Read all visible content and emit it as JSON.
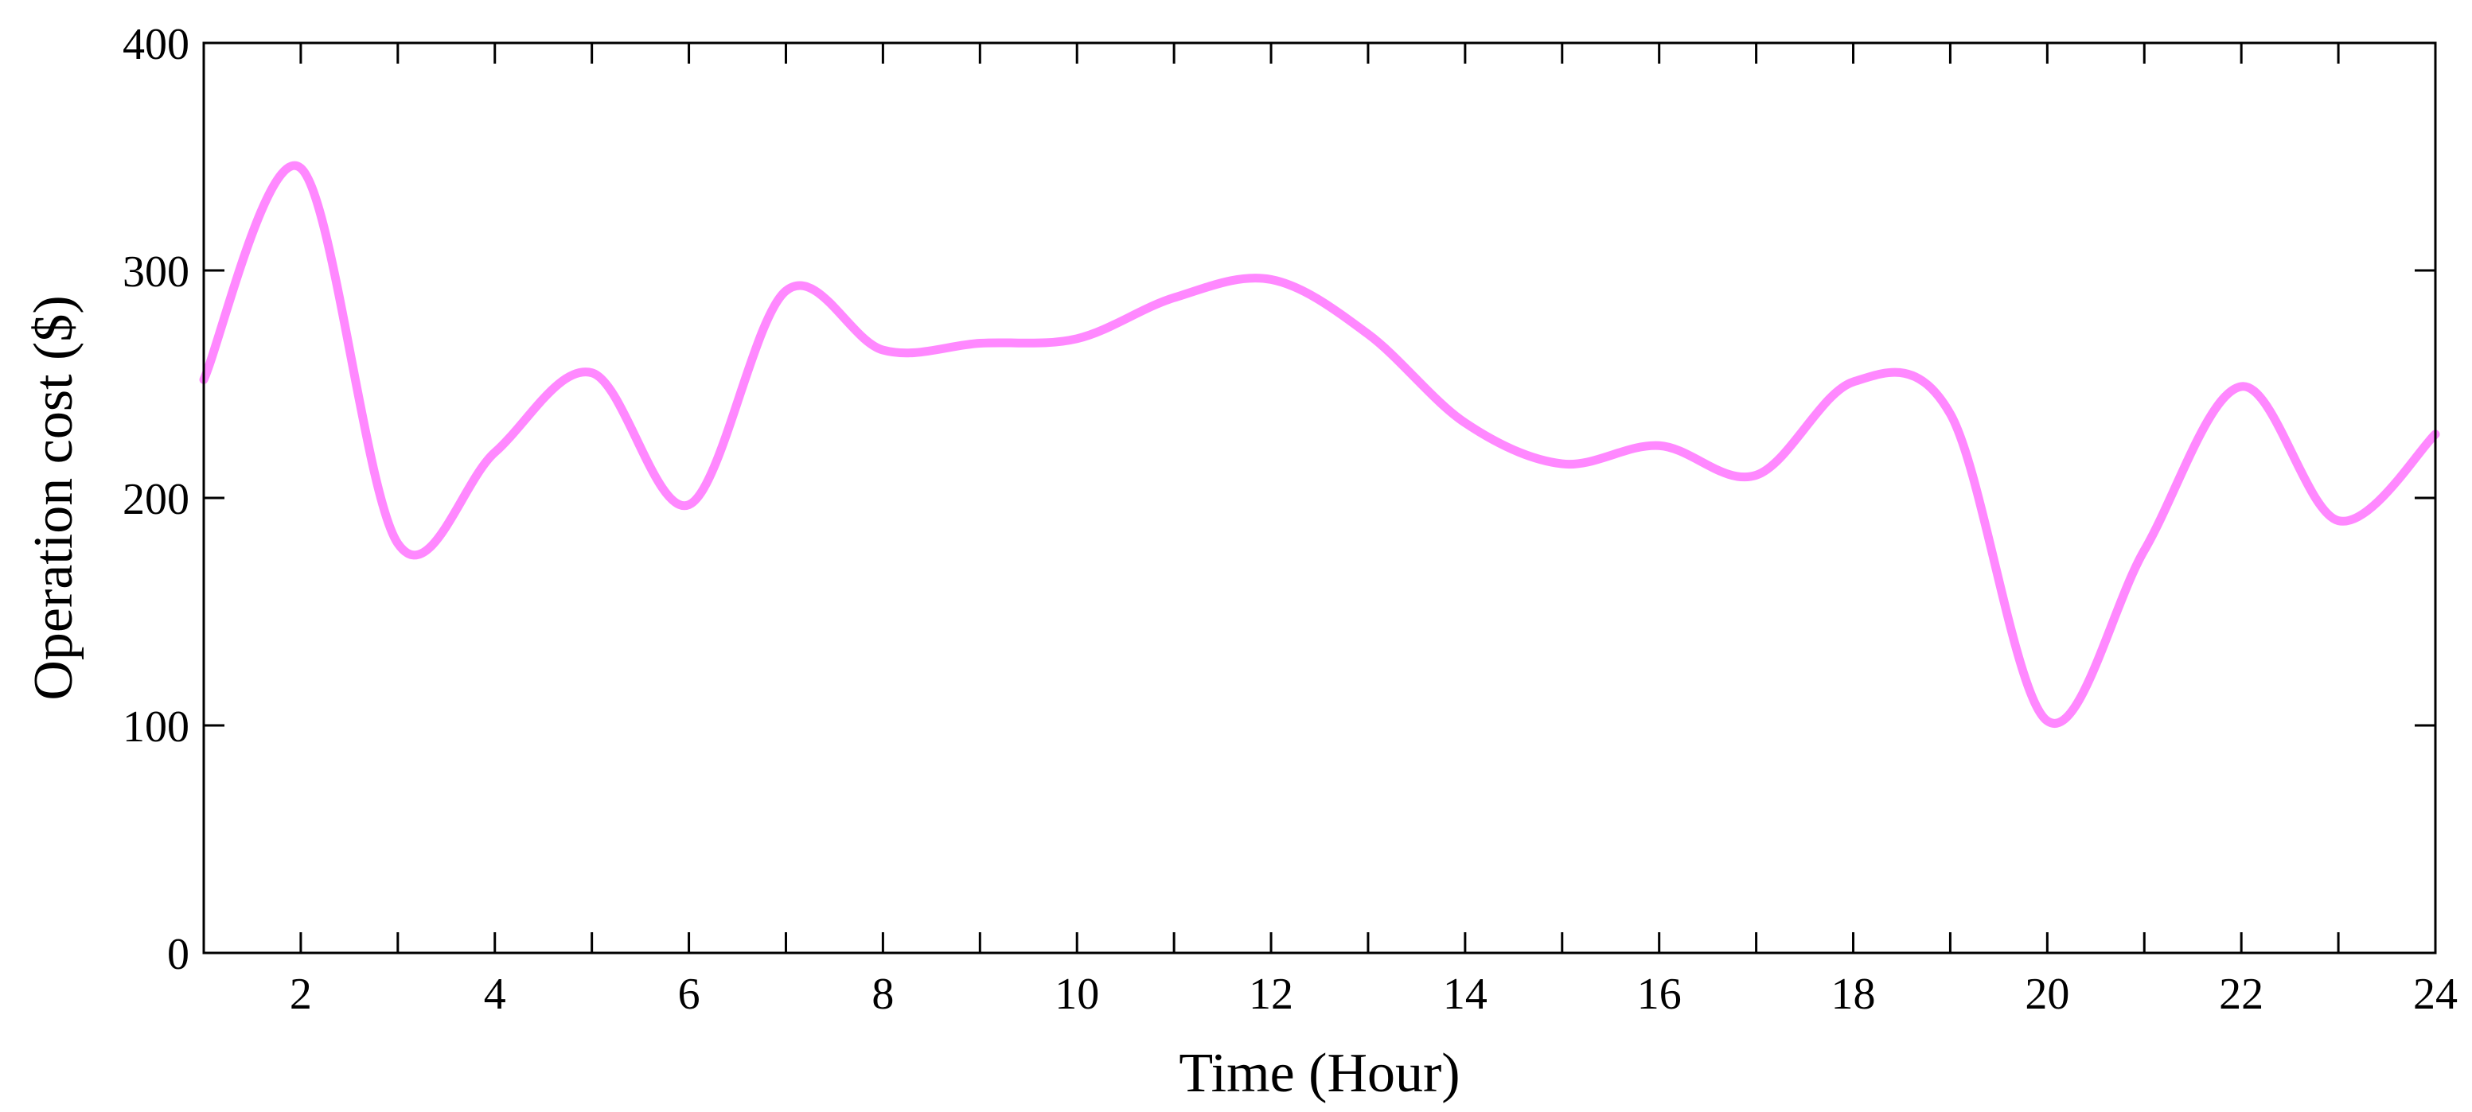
{
  "chart_data": {
    "type": "line",
    "xlabel": "Time (Hour)",
    "ylabel": "Operation cost ($)",
    "xlim": [
      1,
      24
    ],
    "ylim": [
      0,
      400
    ],
    "x_ticks": [
      2,
      4,
      6,
      8,
      10,
      12,
      14,
      16,
      18,
      20,
      22,
      24
    ],
    "y_ticks": [
      0,
      100,
      200,
      300,
      400
    ],
    "x_minor_ticks": [
      1,
      3,
      5,
      7,
      9,
      11,
      13,
      15,
      17,
      19,
      21,
      23
    ],
    "grid": false,
    "legend": "none",
    "series": [
      {
        "color": "#ff88ff",
        "x": [
          1,
          2,
          3,
          4,
          5,
          6,
          7,
          8,
          9,
          10,
          11,
          12,
          13,
          14,
          15,
          16,
          17,
          18,
          19,
          20,
          21,
          22,
          23,
          24
        ],
        "values": [
          252,
          345,
          180,
          220,
          255,
          197,
          291,
          265,
          268,
          270,
          288,
          296,
          272,
          233,
          215,
          223,
          210,
          251,
          237,
          102,
          177,
          249,
          190,
          228
        ]
      }
    ]
  }
}
